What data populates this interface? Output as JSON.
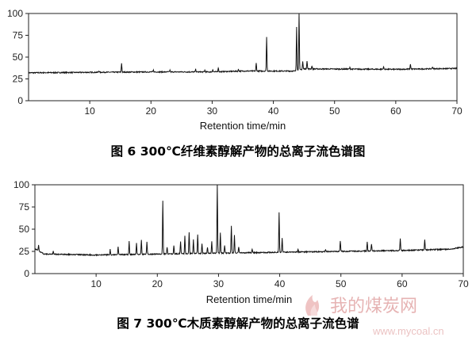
{
  "chart_data": [
    {
      "type": "line",
      "title": "",
      "xlabel": "Retention time/min",
      "ylabel": "",
      "xlim": [
        0,
        70
      ],
      "ylim": [
        0,
        100
      ],
      "xticks": [
        10,
        20,
        30,
        40,
        50,
        60,
        70
      ],
      "yticks": [
        0,
        25,
        50,
        75,
        100
      ],
      "caption": "图 6  300℃纤维素醇解产物的总离子流色谱图",
      "grid": false,
      "baseline": [
        [
          0,
          32
        ],
        [
          10,
          32.5
        ],
        [
          20,
          33
        ],
        [
          30,
          33
        ],
        [
          35,
          34
        ],
        [
          40,
          34
        ],
        [
          43.5,
          34
        ],
        [
          45,
          36.5
        ],
        [
          60,
          36
        ],
        [
          70,
          37
        ]
      ],
      "peaks": [
        {
          "x": 11.5,
          "y": 34.5
        },
        {
          "x": 15.2,
          "y": 43
        },
        {
          "x": 20.4,
          "y": 35
        },
        {
          "x": 23.1,
          "y": 35
        },
        {
          "x": 27.3,
          "y": 36
        },
        {
          "x": 28.8,
          "y": 35
        },
        {
          "x": 30.1,
          "y": 36
        },
        {
          "x": 31.0,
          "y": 38
        },
        {
          "x": 34.3,
          "y": 36
        },
        {
          "x": 37.2,
          "y": 43
        },
        {
          "x": 38.9,
          "y": 73
        },
        {
          "x": 43.8,
          "y": 85
        },
        {
          "x": 44.2,
          "y": 100
        },
        {
          "x": 44.8,
          "y": 45
        },
        {
          "x": 45.5,
          "y": 46
        },
        {
          "x": 46.3,
          "y": 40
        },
        {
          "x": 52.5,
          "y": 38
        },
        {
          "x": 58.0,
          "y": 39
        },
        {
          "x": 62.4,
          "y": 42
        },
        {
          "x": 66.0,
          "y": 39
        }
      ]
    },
    {
      "type": "line",
      "title": "",
      "xlabel": "Retention time/min",
      "ylabel": "",
      "xlim": [
        0,
        70
      ],
      "ylim": [
        0,
        100
      ],
      "xticks": [
        10,
        20,
        30,
        40,
        50,
        60,
        70
      ],
      "yticks": [
        0,
        25,
        50,
        75,
        100
      ],
      "caption": "图 7  300℃木质素醇解产物的总离子流色谱",
      "grid": false,
      "baseline": [
        [
          0,
          28
        ],
        [
          1.5,
          22
        ],
        [
          10,
          21
        ],
        [
          20,
          22
        ],
        [
          30,
          23
        ],
        [
          40,
          24
        ],
        [
          50,
          25
        ],
        [
          60,
          26
        ],
        [
          68,
          27.5
        ],
        [
          70,
          30
        ]
      ],
      "peaks": [
        {
          "x": 0.6,
          "y": 32
        },
        {
          "x": 3.0,
          "y": 26
        },
        {
          "x": 12.3,
          "y": 27
        },
        {
          "x": 13.6,
          "y": 30
        },
        {
          "x": 15.4,
          "y": 36
        },
        {
          "x": 16.6,
          "y": 34
        },
        {
          "x": 17.4,
          "y": 38
        },
        {
          "x": 18.3,
          "y": 36
        },
        {
          "x": 20.9,
          "y": 82
        },
        {
          "x": 21.6,
          "y": 30
        },
        {
          "x": 22.7,
          "y": 32
        },
        {
          "x": 23.8,
          "y": 36
        },
        {
          "x": 24.5,
          "y": 42
        },
        {
          "x": 25.2,
          "y": 47
        },
        {
          "x": 25.9,
          "y": 38
        },
        {
          "x": 26.6,
          "y": 44
        },
        {
          "x": 27.3,
          "y": 34
        },
        {
          "x": 28.2,
          "y": 30
        },
        {
          "x": 28.9,
          "y": 36
        },
        {
          "x": 29.8,
          "y": 100
        },
        {
          "x": 30.3,
          "y": 46
        },
        {
          "x": 31.0,
          "y": 32
        },
        {
          "x": 32.1,
          "y": 54
        },
        {
          "x": 32.6,
          "y": 43
        },
        {
          "x": 33.3,
          "y": 30
        },
        {
          "x": 35.5,
          "y": 28
        },
        {
          "x": 39.9,
          "y": 69
        },
        {
          "x": 40.4,
          "y": 40
        },
        {
          "x": 43.0,
          "y": 27
        },
        {
          "x": 47.5,
          "y": 27
        },
        {
          "x": 49.9,
          "y": 37
        },
        {
          "x": 54.3,
          "y": 36
        },
        {
          "x": 55.0,
          "y": 33
        },
        {
          "x": 59.7,
          "y": 40
        },
        {
          "x": 63.7,
          "y": 38
        }
      ]
    }
  ],
  "watermark": {
    "text": "我的煤炭网",
    "url": "www.mycoal.cn",
    "colors": {
      "flame": "#e59a9a",
      "text": "#e2a6a6"
    }
  },
  "colors": {
    "line": "#111111",
    "axis": "#222222"
  }
}
